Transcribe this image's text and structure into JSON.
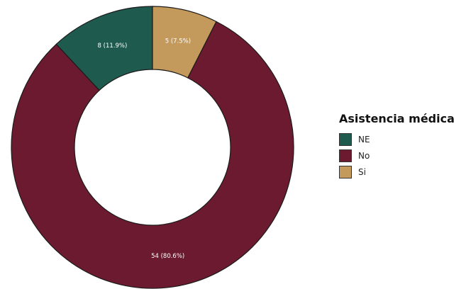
{
  "chart_data": {
    "type": "pie",
    "style": "donut",
    "legend_title": "Asistencia médica",
    "legend_position": "right",
    "slices": [
      {
        "label": "NE",
        "value": 8,
        "display": "8 (11.9%)",
        "color": "#1f5a4e"
      },
      {
        "label": "No",
        "value": 54,
        "display": "54 (80.6%)",
        "color": "#6b1a2f"
      },
      {
        "label": "Si",
        "value": 5,
        "display": "5 (7.5%)",
        "color": "#c49a5c"
      }
    ],
    "label_color": "#ffffff",
    "edge_color": "#1a1a1a"
  }
}
